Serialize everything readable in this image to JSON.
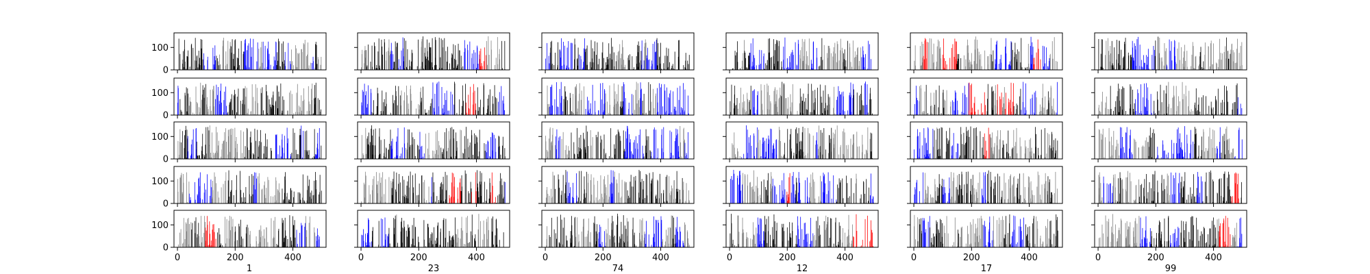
{
  "chart_data": {
    "type": "bar",
    "layout": "grid of small multiples, 5 rows x 6 columns",
    "shared_x_ticks": [
      "0",
      "200",
      "400"
    ],
    "shared_y_ticks": [
      "0",
      "100"
    ],
    "x_range": [
      -12,
      515
    ],
    "y_range": [
      0,
      165
    ],
    "bar_count_per_panel": 500,
    "bar_value_range": [
      0,
      150
    ],
    "bar_colors": [
      "#000000",
      "#808080",
      "#0000ff",
      "#ff0000"
    ],
    "column_labels": [
      "1",
      "23",
      "74",
      "12",
      "17",
      "99"
    ]
  }
}
